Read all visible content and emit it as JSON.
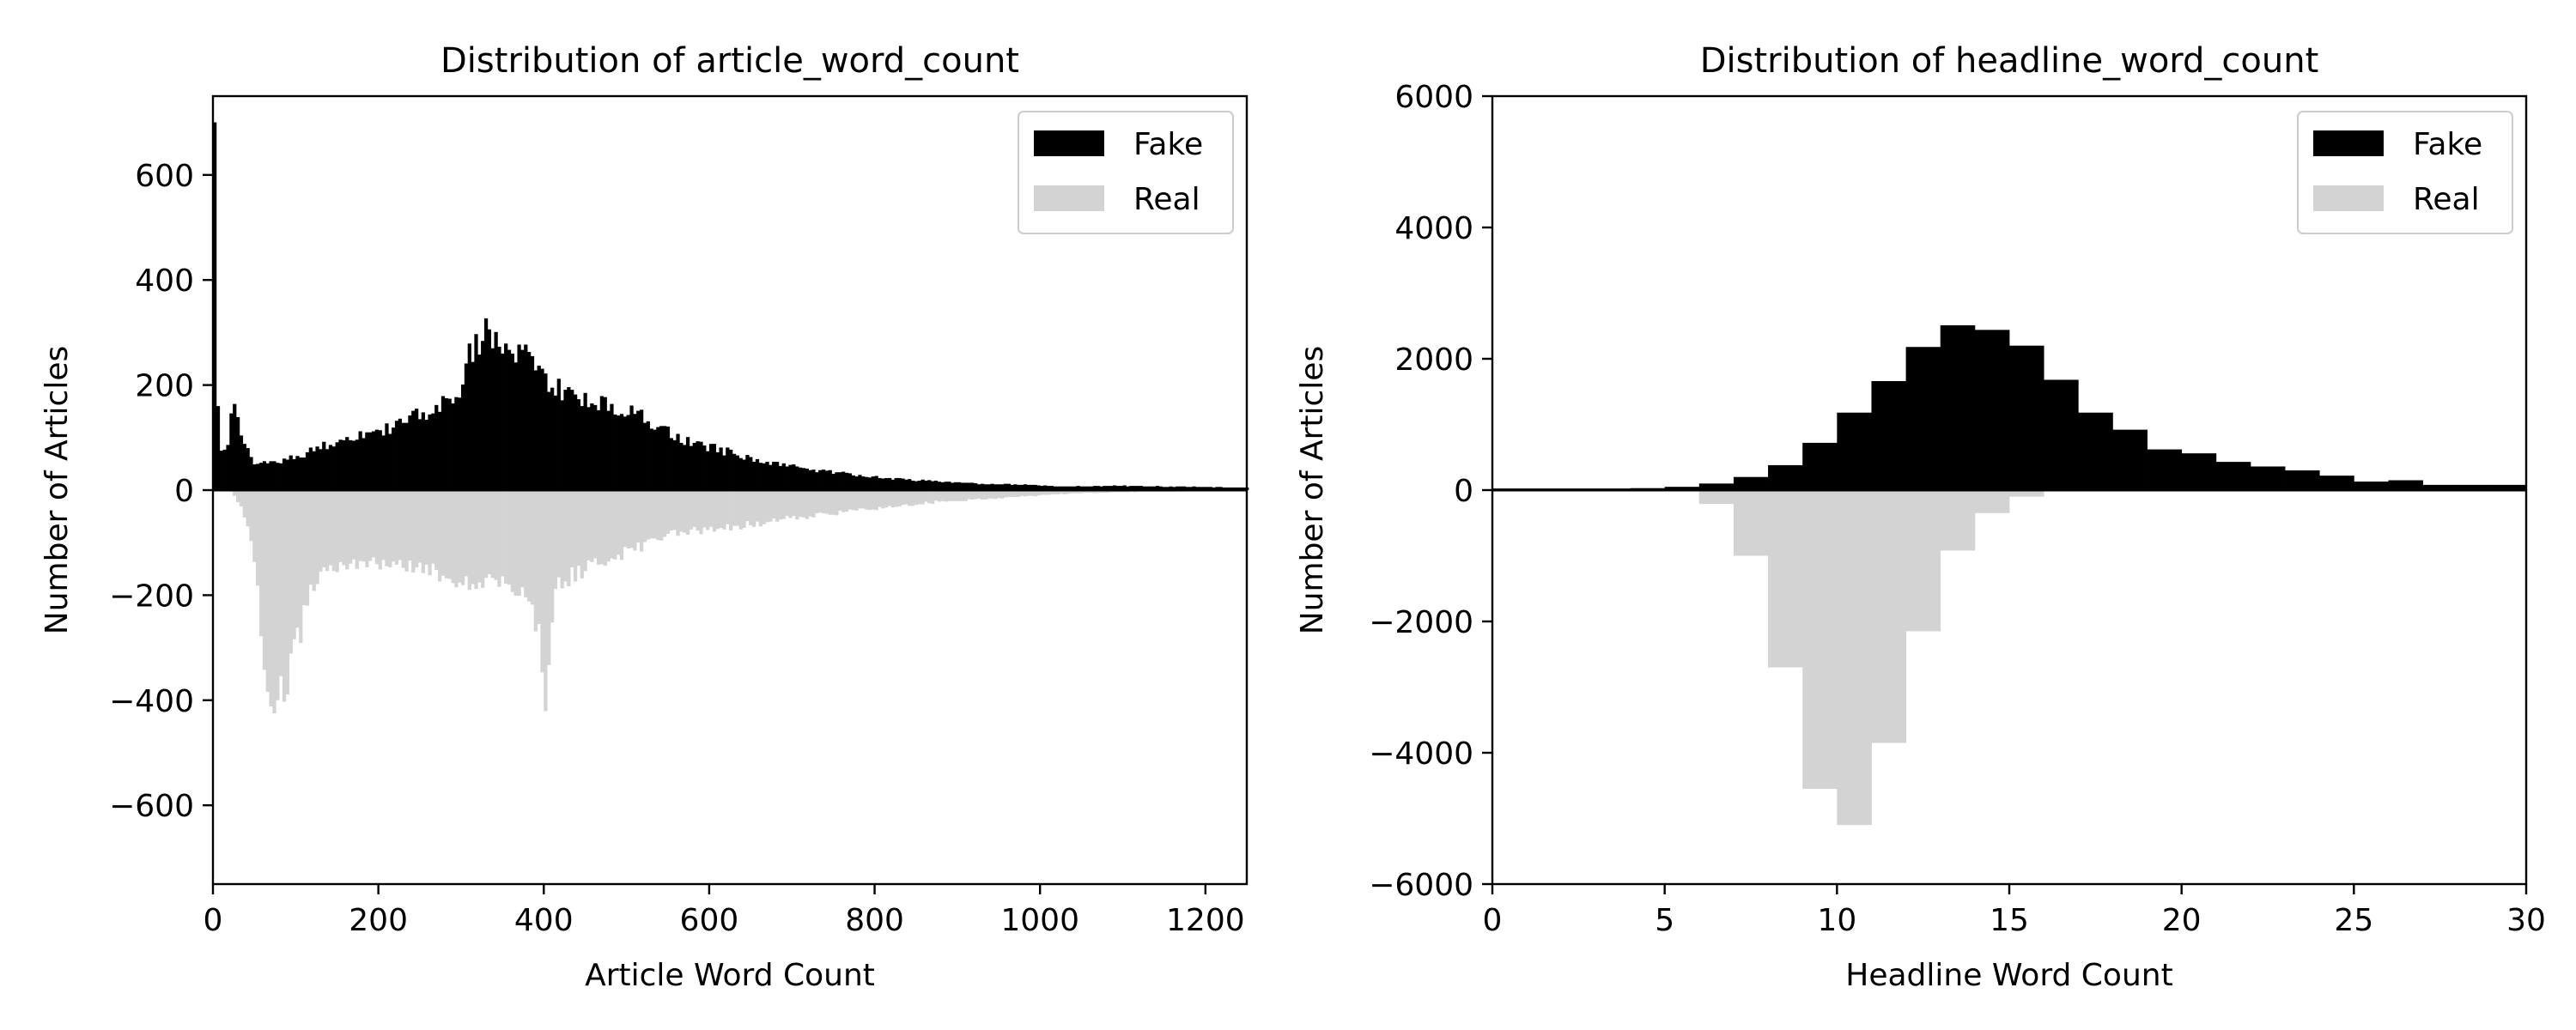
{
  "chart_data": [
    {
      "type": "bar",
      "title": "Distribution of article_word_count",
      "xlabel": "Article Word Count",
      "ylabel": "Number of Articles",
      "xlim": [
        0,
        1250
      ],
      "ylim": [
        -750,
        750
      ],
      "xticks": [
        0,
        200,
        400,
        600,
        800,
        1000,
        1200
      ],
      "yticks": [
        -600,
        -400,
        -200,
        0,
        200,
        400,
        600
      ],
      "ytick_labels": [
        "−600",
        "−400",
        "−200",
        "0",
        "200",
        "400",
        "600"
      ],
      "legend": "top-right",
      "bin_width": 4,
      "series": [
        {
          "name": "Fake",
          "color": "#000000",
          "direction": "up",
          "profile": [
            [
              0,
              70
            ],
            [
              2,
              700
            ],
            [
              4,
              300
            ],
            [
              6,
              160
            ],
            [
              8,
              75
            ],
            [
              16,
              75
            ],
            [
              20,
              100
            ],
            [
              24,
              170
            ],
            [
              28,
              130
            ],
            [
              32,
              125
            ],
            [
              36,
              90
            ],
            [
              44,
              70
            ],
            [
              50,
              50
            ],
            [
              60,
              55
            ],
            [
              80,
              55
            ],
            [
              100,
              62
            ],
            [
              130,
              82
            ],
            [
              160,
              100
            ],
            [
              200,
              110
            ],
            [
              240,
              135
            ],
            [
              280,
              170
            ],
            [
              300,
              175
            ],
            [
              306,
              245
            ],
            [
              320,
              275
            ],
            [
              332,
              315
            ],
            [
              340,
              290
            ],
            [
              360,
              275
            ],
            [
              380,
              260
            ],
            [
              400,
              215
            ],
            [
              420,
              190
            ],
            [
              440,
              175
            ],
            [
              480,
              160
            ],
            [
              520,
              140
            ],
            [
              560,
              100
            ],
            [
              600,
              82
            ],
            [
              640,
              65
            ],
            [
              680,
              50
            ],
            [
              720,
              40
            ],
            [
              760,
              32
            ],
            [
              800,
              25
            ],
            [
              840,
              20
            ],
            [
              880,
              16
            ],
            [
              920,
              13
            ],
            [
              960,
              11
            ],
            [
              1000,
              9
            ],
            [
              1040,
              7
            ],
            [
              1100,
              8
            ],
            [
              1200,
              6
            ],
            [
              1250,
              5
            ]
          ]
        },
        {
          "name": "Real",
          "color": "#d3d3d3",
          "direction": "down",
          "profile": [
            [
              0,
              0
            ],
            [
              20,
              0
            ],
            [
              24,
              5
            ],
            [
              36,
              40
            ],
            [
              44,
              80
            ],
            [
              52,
              150
            ],
            [
              56,
              220
            ],
            [
              60,
              290
            ],
            [
              64,
              340
            ],
            [
              68,
              380
            ],
            [
              72,
              405
            ],
            [
              80,
              380
            ],
            [
              88,
              360
            ],
            [
              96,
              330
            ],
            [
              104,
              280
            ],
            [
              112,
              210
            ],
            [
              124,
              180
            ],
            [
              140,
              150
            ],
            [
              180,
              140
            ],
            [
              220,
              145
            ],
            [
              260,
              150
            ],
            [
              300,
              170
            ],
            [
              340,
              180
            ],
            [
              370,
              190
            ],
            [
              384,
              230
            ],
            [
              392,
              260
            ],
            [
              396,
              310
            ],
            [
              400,
              415
            ],
            [
              404,
              360
            ],
            [
              408,
              260
            ],
            [
              412,
              200
            ],
            [
              420,
              180
            ],
            [
              440,
              155
            ],
            [
              480,
              130
            ],
            [
              520,
              105
            ],
            [
              560,
              80
            ],
            [
              600,
              75
            ],
            [
              640,
              68
            ],
            [
              680,
              58
            ],
            [
              720,
              50
            ],
            [
              760,
              42
            ],
            [
              800,
              35
            ],
            [
              840,
              28
            ],
            [
              880,
              22
            ],
            [
              920,
              18
            ],
            [
              960,
              14
            ],
            [
              1000,
              10
            ],
            [
              1040,
              6
            ],
            [
              1100,
              4
            ],
            [
              1200,
              2
            ],
            [
              1250,
              0
            ]
          ]
        }
      ]
    },
    {
      "type": "bar",
      "title": "Distribution of headline_word_count",
      "xlabel": "Headline Word Count",
      "ylabel": "Number of Articles",
      "xlim": [
        0,
        30
      ],
      "ylim": [
        -6000,
        6000
      ],
      "xticks": [
        0,
        5,
        10,
        15,
        20,
        25,
        30
      ],
      "yticks": [
        -6000,
        -4000,
        -2000,
        0,
        2000,
        4000,
        6000
      ],
      "ytick_labels": [
        "−6000",
        "−4000",
        "−2000",
        "0",
        "2000",
        "4000",
        "6000"
      ],
      "legend": "top-right",
      "bin_width": 1,
      "x": [
        0,
        1,
        2,
        3,
        4,
        5,
        6,
        7,
        8,
        9,
        10,
        11,
        12,
        13,
        14,
        15,
        16,
        17,
        18,
        19,
        20,
        21,
        22,
        23,
        24,
        25,
        26,
        27,
        28,
        29
      ],
      "series": [
        {
          "name": "Fake",
          "color": "#000000",
          "direction": "up",
          "values": [
            25,
            25,
            25,
            25,
            30,
            50,
            100,
            200,
            380,
            720,
            1180,
            1660,
            2180,
            2510,
            2440,
            2200,
            1680,
            1180,
            920,
            620,
            560,
            430,
            360,
            300,
            220,
            130,
            150,
            80,
            80,
            80
          ]
        },
        {
          "name": "Real",
          "color": "#d3d3d3",
          "direction": "down",
          "values": [
            0,
            0,
            0,
            0,
            0,
            0,
            210,
            1000,
            2700,
            4550,
            5100,
            3850,
            2150,
            920,
            350,
            100,
            0,
            0,
            0,
            0,
            0,
            0,
            0,
            0,
            0,
            0,
            0,
            0,
            0,
            0
          ]
        }
      ]
    }
  ]
}
